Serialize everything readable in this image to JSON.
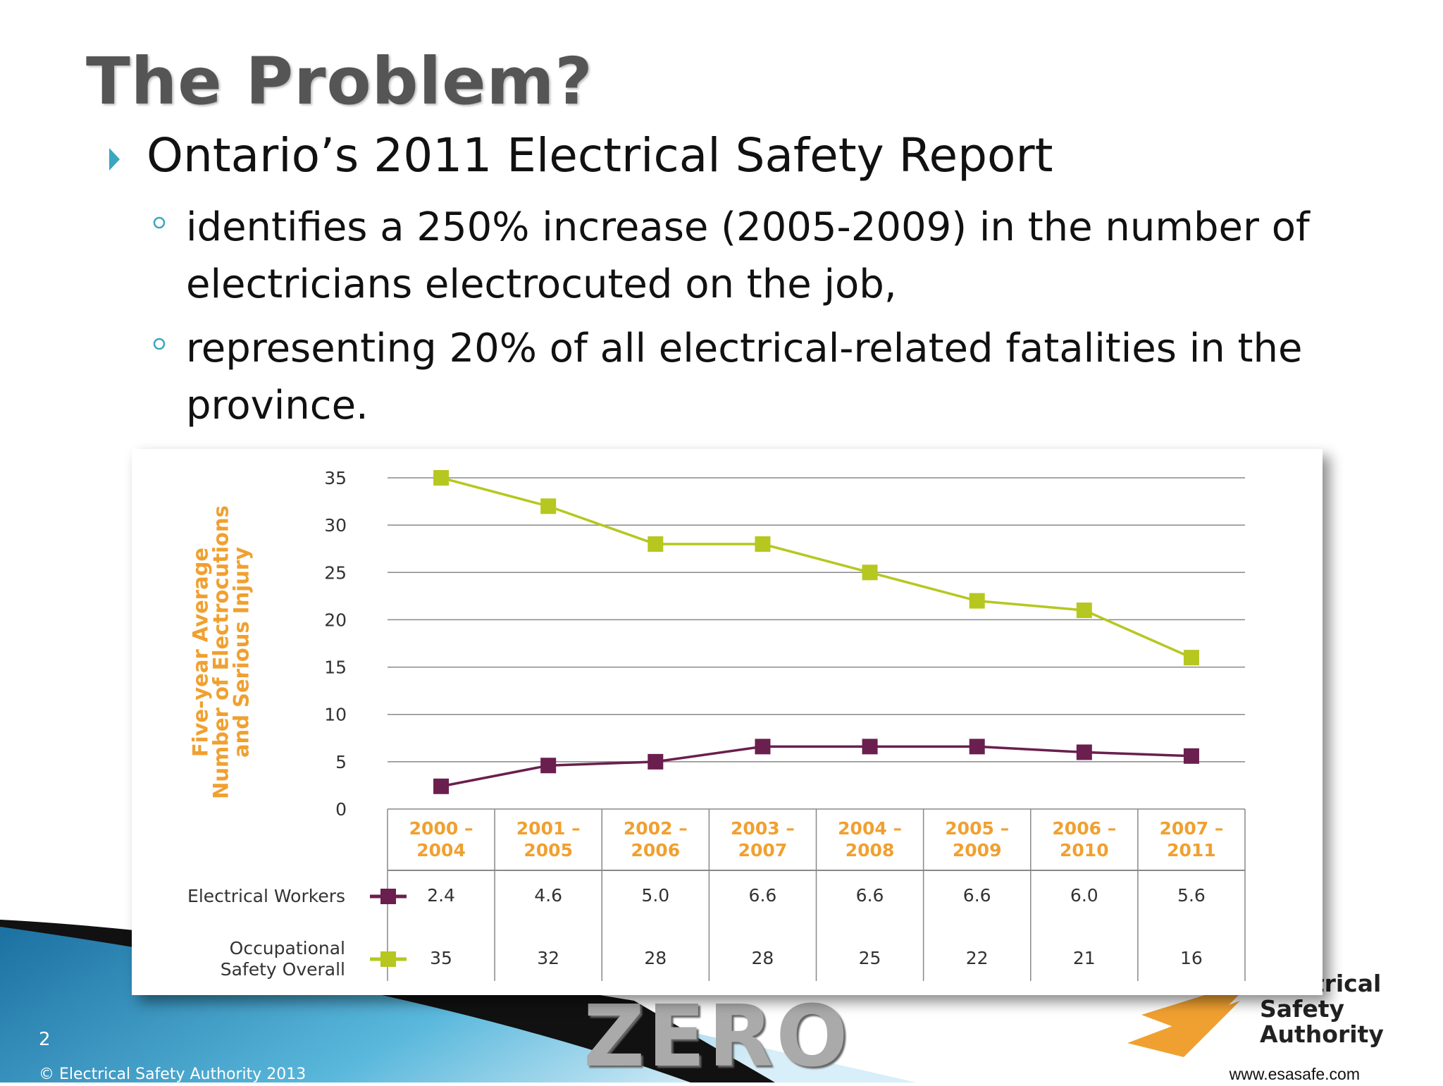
{
  "slide": {
    "title": "The Problem?",
    "bullet": "Ontario’s 2011 Electrical Safety Report",
    "sub_bullets": [
      "identifies a 250% increase (2005-2009) in the number of electricians electrocuted on the job,",
      "representing 20% of all electrical-related fatalities in the province."
    ],
    "page_number": "2",
    "copyright": "© Electrical Safety Authority 2013",
    "website": "www.esasafe.com",
    "brand": "ZERO",
    "logo_lines": [
      "Electrical",
      "Safety",
      "Authority"
    ]
  },
  "chart_data": {
    "type": "line",
    "y_label": "Five-year Average Number of Electrocutions and Serious Injury",
    "categories": [
      "2000 – 2004",
      "2001 – 2005",
      "2002 – 2006",
      "2003 – 2007",
      "2004 – 2008",
      "2005 – 2009",
      "2006 – 2010",
      "2007 – 2011"
    ],
    "series": [
      {
        "name": "Electrical Workers",
        "color": "#6a1f4e",
        "values": [
          2.4,
          4.6,
          5.0,
          6.6,
          6.6,
          6.6,
          6.0,
          5.6
        ],
        "value_labels": [
          "2.4",
          "4.6",
          "5.0",
          "6.6",
          "6.6",
          "6.6",
          "6.0",
          "5.6"
        ]
      },
      {
        "name": "Occupational Safety Overall",
        "color": "#b6c71f",
        "values": [
          35,
          32,
          28,
          28,
          25,
          22,
          21,
          16
        ]
      }
    ],
    "ylim": [
      0,
      35
    ],
    "yticks": [
      0,
      5,
      10,
      15,
      20,
      25,
      30,
      35
    ],
    "grid": true
  }
}
